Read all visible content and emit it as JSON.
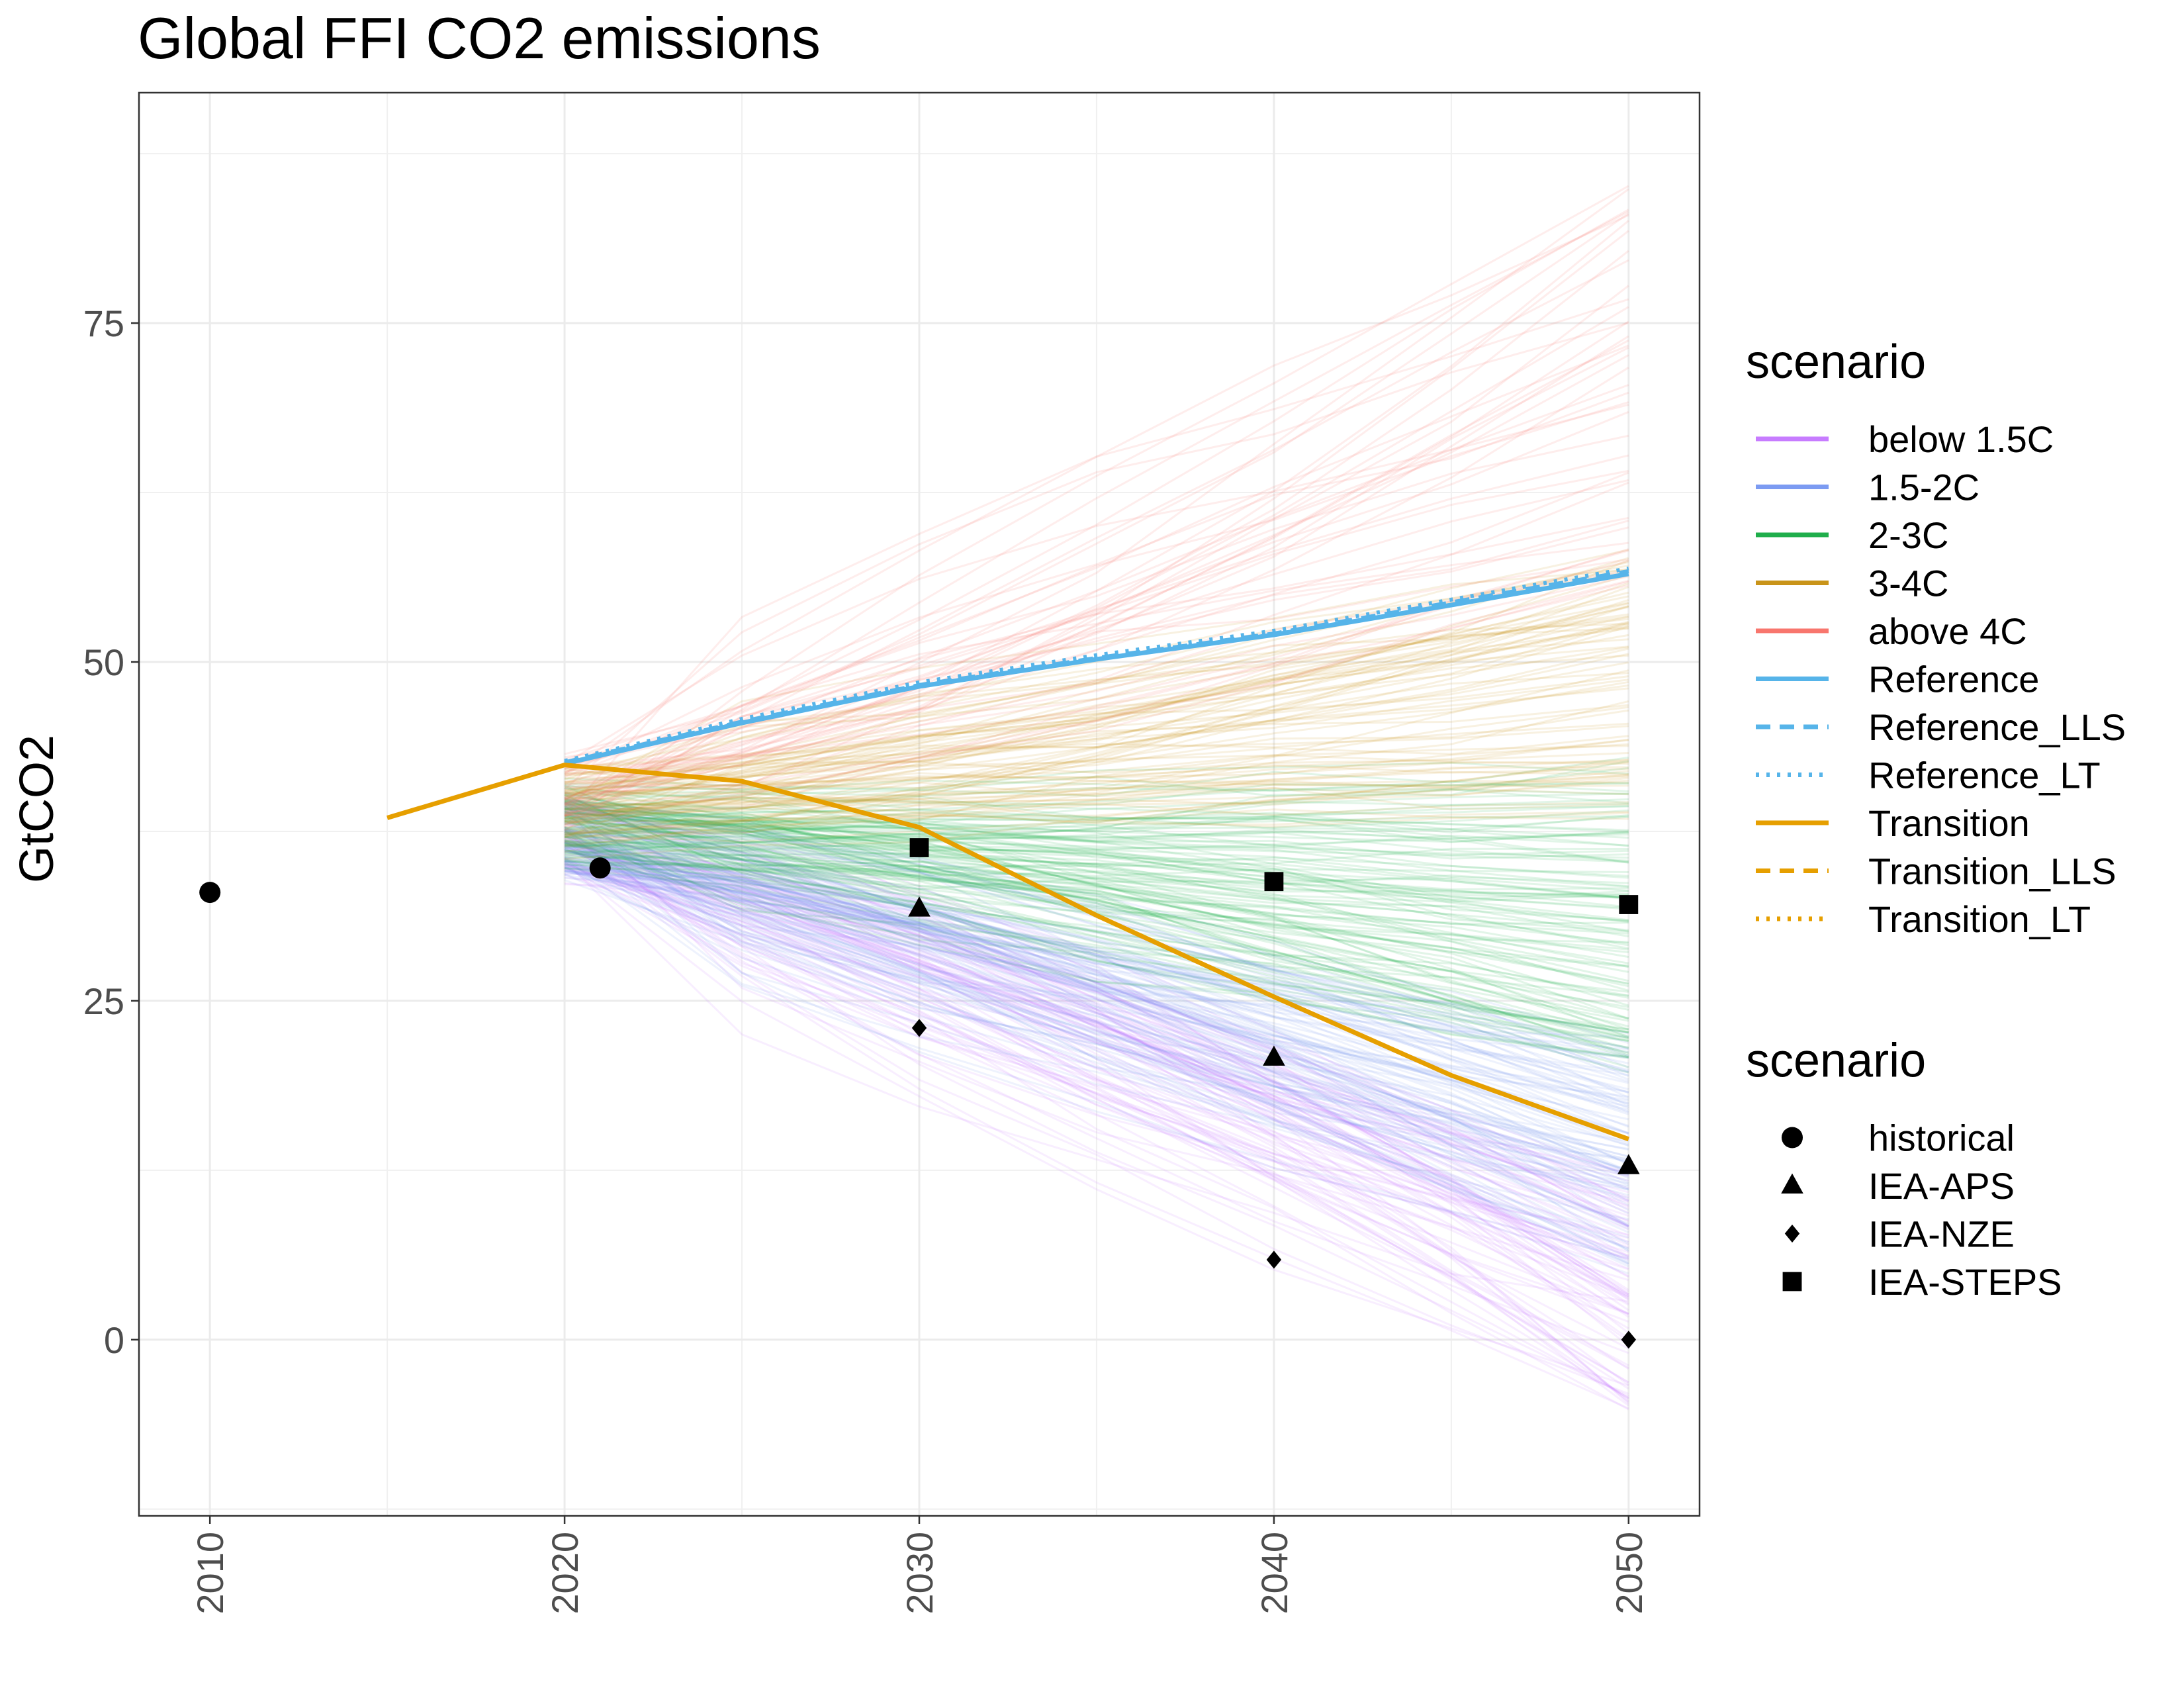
{
  "chart_data": {
    "type": "line",
    "title": "Global FFI CO2 emissions",
    "xlabel": "",
    "ylabel": "GtCO2",
    "xlim": [
      2008,
      2052
    ],
    "ylim": [
      -13,
      92
    ],
    "x_ticks": [
      2010,
      2020,
      2030,
      2040,
      2050
    ],
    "y_ticks": [
      0,
      25,
      50,
      75
    ],
    "grid": true,
    "legend_position": "right",
    "legends": [
      {
        "title": "scenario",
        "kind": "line",
        "entries": [
          {
            "label": "below 1.5C",
            "color": "#c77cff",
            "dash": "solid"
          },
          {
            "label": "1.5-2C",
            "color": "#7c9bf2",
            "dash": "solid"
          },
          {
            "label": "2-3C",
            "color": "#1fae4b",
            "dash": "solid"
          },
          {
            "label": "3-4C",
            "color": "#c99419",
            "dash": "solid"
          },
          {
            "label": "above 4C",
            "color": "#f8766d",
            "dash": "solid"
          },
          {
            "label": "Reference",
            "color": "#56b4e9",
            "dash": "solid"
          },
          {
            "label": "Reference_LLS",
            "color": "#56b4e9",
            "dash": "dashed"
          },
          {
            "label": "Reference_LT",
            "color": "#56b4e9",
            "dash": "dotted"
          },
          {
            "label": "Transition",
            "color": "#e69f00",
            "dash": "solid"
          },
          {
            "label": "Transition_LLS",
            "color": "#e69f00",
            "dash": "dashed"
          },
          {
            "label": "Transition_LT",
            "color": "#e69f00",
            "dash": "dotted"
          }
        ]
      },
      {
        "title": "scenario",
        "kind": "point",
        "entries": [
          {
            "label": "historical",
            "shape": "circle"
          },
          {
            "label": "IEA-APS",
            "shape": "triangle"
          },
          {
            "label": "IEA-NZE",
            "shape": "diamond"
          },
          {
            "label": "IEA-STEPS",
            "shape": "square"
          }
        ]
      }
    ],
    "ensemble_bands": [
      {
        "name": "below 1.5C",
        "color": "#c77cff",
        "count": 90,
        "start_2020": [
          34,
          40
        ],
        "end_2050": [
          -5,
          12
        ]
      },
      {
        "name": "1.5-2C",
        "color": "#7c9bf2",
        "count": 110,
        "start_2020": [
          34,
          40
        ],
        "end_2050": [
          5,
          22
        ]
      },
      {
        "name": "2-3C",
        "color": "#1fae4b",
        "count": 120,
        "start_2020": [
          35,
          41
        ],
        "end_2050": [
          20,
          43
        ]
      },
      {
        "name": "3-4C",
        "color": "#c99419",
        "count": 80,
        "start_2020": [
          36,
          42
        ],
        "end_2050": [
          38,
          58
        ]
      },
      {
        "name": "above 4C",
        "color": "#f8766d",
        "count": 45,
        "start_2020": [
          38,
          43
        ],
        "end_2050": [
          52,
          86
        ]
      }
    ],
    "lines": [
      {
        "name": "Reference",
        "color": "#56b4e9",
        "dash": "solid",
        "x": [
          2020,
          2025,
          2030,
          2035,
          2040,
          2045,
          2050
        ],
        "y": [
          42.5,
          45.5,
          48.2,
          50.2,
          52.0,
          54.2,
          56.5
        ]
      },
      {
        "name": "Reference_LLS",
        "color": "#56b4e9",
        "dash": "dashed",
        "x": [
          2020,
          2025,
          2030,
          2035,
          2040,
          2045,
          2050
        ],
        "y": [
          42.6,
          45.6,
          48.3,
          50.3,
          52.1,
          54.4,
          56.7
        ]
      },
      {
        "name": "Reference_LT",
        "color": "#56b4e9",
        "dash": "dotted",
        "x": [
          2020,
          2025,
          2030,
          2035,
          2040,
          2045,
          2050
        ],
        "y": [
          42.7,
          45.8,
          48.5,
          50.5,
          52.3,
          54.6,
          56.9
        ]
      },
      {
        "name": "Transition",
        "color": "#e69f00",
        "dash": "solid",
        "x": [
          2015,
          2020,
          2025,
          2030,
          2035,
          2040,
          2045,
          2050
        ],
        "y": [
          38.5,
          42.4,
          41.2,
          37.8,
          31.3,
          25.3,
          19.5,
          14.8
        ]
      }
    ],
    "points": [
      {
        "name": "historical",
        "shape": "circle",
        "x": [
          2010,
          2021
        ],
        "y": [
          33.0,
          34.8
        ]
      },
      {
        "name": "IEA-APS",
        "shape": "triangle",
        "x": [
          2030,
          2040,
          2050
        ],
        "y": [
          31.8,
          20.8,
          12.8
        ]
      },
      {
        "name": "IEA-NZE",
        "shape": "diamond",
        "x": [
          2030,
          2040,
          2050
        ],
        "y": [
          23.0,
          5.9,
          0.0
        ]
      },
      {
        "name": "IEA-STEPS",
        "shape": "square",
        "x": [
          2030,
          2040,
          2050
        ],
        "y": [
          36.3,
          33.8,
          32.1
        ]
      }
    ]
  }
}
